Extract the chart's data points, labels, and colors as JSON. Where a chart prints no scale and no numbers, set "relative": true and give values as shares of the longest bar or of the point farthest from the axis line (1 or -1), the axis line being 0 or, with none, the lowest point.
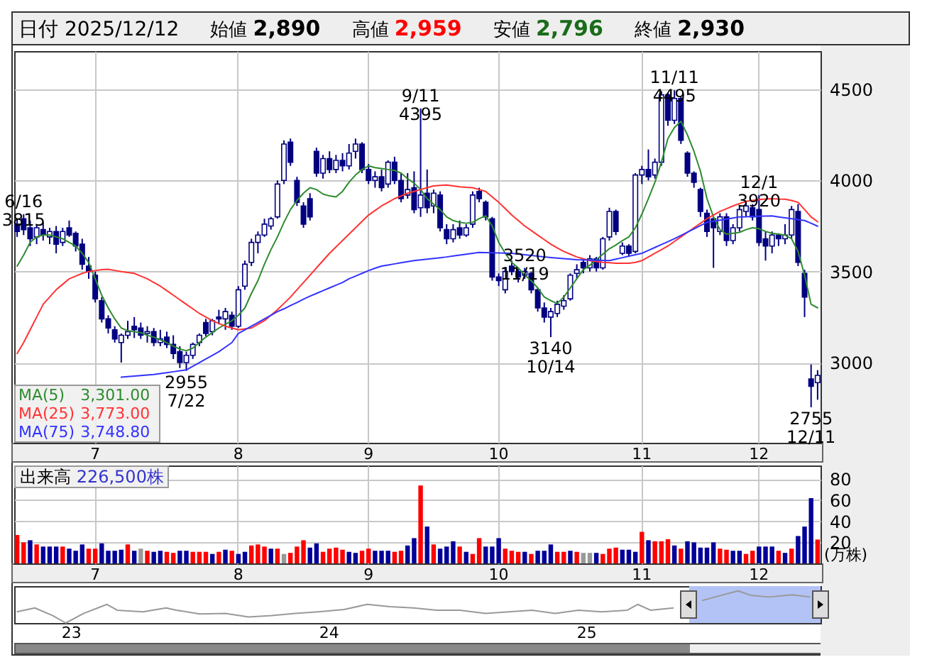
{
  "chart_data": [
    {
      "type": "candlestick",
      "title": "日付 2025/12/12",
      "categories": [
        null,
        null,
        null,
        null,
        null,
        null,
        null,
        null,
        null,
        null,
        null,
        null,
        "7",
        null,
        null,
        null,
        null,
        null,
        null,
        null,
        null,
        null,
        null,
        null,
        null,
        null,
        null,
        null,
        null,
        null,
        null,
        null,
        null,
        null,
        "8",
        null,
        null,
        null,
        null,
        null,
        null,
        null,
        null,
        null,
        null,
        null,
        null,
        null,
        null,
        null,
        null,
        null,
        null,
        null,
        "9",
        null,
        null,
        null,
        null,
        null,
        null,
        null,
        null,
        null,
        null,
        null,
        null,
        null,
        null,
        null,
        null,
        null,
        null,
        null,
        "10",
        null,
        null,
        null,
        null,
        null,
        null,
        null,
        null,
        null,
        null,
        null,
        null,
        null,
        null,
        null,
        null,
        null,
        null,
        null,
        null,
        null,
        "11",
        null,
        null,
        null,
        null,
        null,
        null,
        null,
        null,
        null,
        null,
        null,
        null,
        null,
        null,
        null,
        null,
        null,
        "12",
        null,
        null,
        null,
        null,
        null,
        null,
        null,
        null,
        null
      ],
      "series": [
        {
          "type": "candlestick",
          "color": "#000080",
          "ohlc": [
            [
              3760,
              3790,
              3690,
              3720
            ],
            [
              3790,
              3815,
              3700,
              3730
            ],
            [
              3740,
              3780,
              3640,
              3680
            ],
            [
              3690,
              3760,
              3650,
              3740
            ],
            [
              3730,
              3770,
              3670,
              3700
            ],
            [
              3690,
              3740,
              3650,
              3720
            ],
            [
              3720,
              3750,
              3600,
              3650
            ],
            [
              3660,
              3740,
              3640,
              3720
            ],
            [
              3740,
              3780,
              3690,
              3700
            ],
            [
              3710,
              3720,
              3610,
              3640
            ],
            [
              3650,
              3680,
              3510,
              3540
            ],
            [
              3530,
              3580,
              3460,
              3500
            ],
            [
              3480,
              3500,
              3330,
              3350
            ],
            [
              3340,
              3360,
              3220,
              3240
            ],
            [
              3240,
              3260,
              3160,
              3190
            ],
            [
              3180,
              3200,
              3110,
              3130
            ],
            [
              3110,
              3160,
              3000,
              3150
            ],
            [
              3150,
              3230,
              3130,
              3170
            ],
            [
              3200,
              3250,
              3135,
              3180
            ],
            [
              3190,
              3220,
              3130,
              3150
            ],
            [
              3160,
              3200,
              3110,
              3170
            ],
            [
              3170,
              3190,
              3090,
              3110
            ],
            [
              3110,
              3180,
              3090,
              3130
            ],
            [
              3140,
              3170,
              3080,
              3100
            ],
            [
              3100,
              3150,
              3020,
              3050
            ],
            [
              3060,
              3090,
              2970,
              3000
            ],
            [
              3000,
              3060,
              2955,
              3040
            ],
            [
              3040,
              3110,
              3020,
              3100
            ],
            [
              3110,
              3160,
              3090,
              3150
            ],
            [
              3220,
              3240,
              3145,
              3160
            ],
            [
              3170,
              3240,
              3150,
              3230
            ],
            [
              3250,
              3290,
              3210,
              3240
            ],
            [
              3240,
              3300,
              3180,
              3280
            ],
            [
              3260,
              3280,
              3180,
              3200
            ],
            [
              3200,
              3420,
              3190,
              3400
            ],
            [
              3420,
              3560,
              3400,
              3540
            ],
            [
              3550,
              3680,
              3530,
              3660
            ],
            [
              3660,
              3720,
              3600,
              3700
            ],
            [
              3700,
              3790,
              3690,
              3760
            ],
            [
              3750,
              3800,
              3730,
              3790
            ],
            [
              3800,
              4000,
              3790,
              3980
            ],
            [
              4000,
              4220,
              3980,
              4200
            ],
            [
              4210,
              4230,
              4080,
              4100
            ],
            [
              4000,
              4020,
              3860,
              3880
            ],
            [
              3860,
              3880,
              3740,
              3760
            ],
            [
              3900,
              3930,
              3780,
              3800
            ],
            [
              4160,
              4180,
              4020,
              4040
            ],
            [
              4040,
              4140,
              4010,
              4120
            ],
            [
              4120,
              4160,
              4040,
              4060
            ],
            [
              4060,
              4140,
              4040,
              4110
            ],
            [
              4110,
              4150,
              4050,
              4080
            ],
            [
              4080,
              4200,
              4060,
              4150
            ],
            [
              4160,
              4230,
              4120,
              4200
            ],
            [
              4200,
              4210,
              4040,
              4060
            ],
            [
              4060,
              4090,
              3980,
              4000
            ],
            [
              4000,
              4050,
              3960,
              4020
            ],
            [
              4020,
              4060,
              3940,
              3960
            ],
            [
              3980,
              4110,
              3960,
              4100
            ],
            [
              4100,
              4130,
              3980,
              4000
            ],
            [
              4000,
              4040,
              3880,
              3900
            ],
            [
              3920,
              4040,
              3900,
              3950
            ],
            [
              3960,
              4050,
              3820,
              3840
            ],
            [
              3850,
              4395,
              3800,
              3920
            ],
            [
              3930,
              4060,
              3820,
              3850
            ],
            [
              3860,
              3950,
              3820,
              3930
            ],
            [
              3920,
              3940,
              3720,
              3740
            ],
            [
              3730,
              3760,
              3650,
              3680
            ],
            [
              3680,
              3760,
              3660,
              3730
            ],
            [
              3740,
              3780,
              3680,
              3700
            ],
            [
              3700,
              3760,
              3690,
              3740
            ],
            [
              3760,
              3940,
              3740,
              3920
            ],
            [
              3940,
              3960,
              3880,
              3900
            ],
            [
              3880,
              3890,
              3780,
              3800
            ],
            [
              3790,
              3800,
              3450,
              3470
            ],
            [
              3470,
              3490,
              3420,
              3450
            ],
            [
              3400,
              3525,
              3380,
              3500
            ],
            [
              3530,
              3560,
              3480,
              3500
            ],
            [
              3500,
              3515,
              3440,
              3470
            ],
            [
              3480,
              3520,
              3460,
              3500
            ],
            [
              3490,
              3500,
              3380,
              3400
            ],
            [
              3400,
              3410,
              3280,
              3300
            ],
            [
              3300,
              3330,
              3220,
              3250
            ],
            [
              3250,
              3300,
              3140,
              3280
            ],
            [
              3270,
              3340,
              3250,
              3320
            ],
            [
              3310,
              3370,
              3290,
              3340
            ],
            [
              3350,
              3490,
              3340,
              3480
            ],
            [
              3490,
              3540,
              3460,
              3510
            ],
            [
              3550,
              3570,
              3490,
              3520
            ],
            [
              3520,
              3590,
              3500,
              3570
            ],
            [
              3570,
              3580,
              3500,
              3520
            ],
            [
              3520,
              3690,
              3510,
              3680
            ],
            [
              3690,
              3850,
              3670,
              3830
            ],
            [
              3830,
              3840,
              3700,
              3720
            ],
            [
              3600,
              3660,
              3590,
              3640
            ],
            [
              3640,
              3650,
              3580,
              3600
            ],
            [
              3610,
              4040,
              3600,
              4030
            ],
            [
              4030,
              4080,
              3980,
              4060
            ],
            [
              4060,
              4170,
              4000,
              4020
            ],
            [
              4030,
              4120,
              4010,
              4100
            ],
            [
              4100,
              4490,
              4080,
              4470
            ],
            [
              4470,
              4480,
              4300,
              4330
            ],
            [
              4330,
              4495,
              4310,
              4450
            ],
            [
              4450,
              4460,
              4200,
              4220
            ],
            [
              4150,
              4160,
              4020,
              4040
            ],
            [
              4040,
              4050,
              3960,
              3990
            ],
            [
              3950,
              3960,
              3800,
              3830
            ],
            [
              3820,
              3840,
              3690,
              3720
            ],
            [
              3790,
              3800,
              3520,
              3740
            ],
            [
              3720,
              3820,
              3700,
              3800
            ],
            [
              3800,
              3820,
              3640,
              3670
            ],
            [
              3670,
              3760,
              3650,
              3740
            ],
            [
              3740,
              3860,
              3720,
              3840
            ],
            [
              3830,
              3880,
              3800,
              3860
            ],
            [
              3850,
              3870,
              3780,
              3800
            ],
            [
              3840,
              3920,
              3640,
              3660
            ],
            [
              3680,
              3720,
              3560,
              3640
            ],
            [
              3640,
              3720,
              3600,
              3700
            ],
            [
              3700,
              3710,
              3640,
              3680
            ],
            [
              3680,
              3760,
              3650,
              3700
            ],
            [
              3700,
              3860,
              3680,
              3840
            ],
            [
              3830,
              3870,
              3530,
              3550
            ],
            [
              3490,
              3510,
              3250,
              3360
            ],
            [
              2910,
              2990,
              2755,
              2870
            ],
            [
              2890,
              2959,
              2796,
              2930
            ]
          ]
        },
        {
          "type": "line",
          "name": "MA(5)",
          "color": "#2e8b2e",
          "values": [
            3530,
            3590,
            3660,
            3690,
            3700,
            3700,
            3690,
            3680,
            3660,
            3640,
            3600,
            3550,
            3460,
            3370,
            3300,
            3240,
            3190,
            3175,
            3170,
            3165,
            3150,
            3140,
            3125,
            3110,
            3090,
            3075,
            3065,
            3080,
            3110,
            3140,
            3165,
            3190,
            3210,
            3230,
            3260,
            3300,
            3380,
            3450,
            3540,
            3620,
            3690,
            3770,
            3840,
            3890,
            3930,
            3960,
            3950,
            3925,
            3915,
            3910,
            3940,
            3990,
            4030,
            4060,
            4080,
            4070,
            4065,
            4060,
            4055,
            4040,
            4010,
            3985,
            3950,
            3900,
            3870,
            3840,
            3800,
            3780,
            3770,
            3765,
            3770,
            3790,
            3806,
            3750,
            3660,
            3600,
            3550,
            3520,
            3480,
            3450,
            3410,
            3360,
            3340,
            3325,
            3360,
            3410,
            3460,
            3510,
            3535,
            3565,
            3595,
            3625,
            3645,
            3670,
            3690,
            3740,
            3815,
            3900,
            3990,
            4100,
            4230,
            4290,
            4325,
            4250,
            4160,
            4050,
            3900,
            3800,
            3730,
            3705,
            3710,
            3715,
            3730,
            3740,
            3735,
            3720,
            3710,
            3705,
            3700,
            3680,
            3610,
            3480,
            3320,
            3301
          ]
        },
        {
          "type": "line",
          "name": "MA(25)",
          "color": "#ff3333",
          "values": [
            3050,
            3110,
            3180,
            3250,
            3320,
            3360,
            3400,
            3430,
            3460,
            3475,
            3490,
            3500,
            3505,
            3510,
            3512,
            3506,
            3500,
            3495,
            3490,
            3475,
            3460,
            3440,
            3420,
            3395,
            3370,
            3345,
            3320,
            3295,
            3270,
            3250,
            3230,
            3215,
            3200,
            3190,
            3180,
            3185,
            3190,
            3210,
            3230,
            3260,
            3290,
            3325,
            3360,
            3400,
            3440,
            3480,
            3520,
            3560,
            3600,
            3635,
            3670,
            3705,
            3740,
            3775,
            3810,
            3835,
            3860,
            3880,
            3900,
            3915,
            3930,
            3940,
            3950,
            3960,
            3970,
            3973,
            3975,
            3970,
            3965,
            3962,
            3960,
            3950,
            3940,
            3910,
            3880,
            3845,
            3810,
            3780,
            3750,
            3725,
            3700,
            3675,
            3650,
            3630,
            3610,
            3595,
            3580,
            3570,
            3560,
            3555,
            3550,
            3548,
            3545,
            3545,
            3545,
            3550,
            3560,
            3580,
            3600,
            3620,
            3640,
            3665,
            3690,
            3715,
            3740,
            3765,
            3790,
            3810,
            3830,
            3845,
            3860,
            3873,
            3885,
            3890,
            3895,
            3898,
            3900,
            3898,
            3897,
            3890,
            3880,
            3840,
            3800,
            3773
          ]
        },
        {
          "type": "line",
          "name": "MA(75)",
          "color": "#3333ff",
          "values": [
            null,
            null,
            null,
            null,
            null,
            null,
            null,
            null,
            null,
            null,
            null,
            null,
            null,
            null,
            null,
            null,
            2920,
            2923,
            2926,
            2929,
            2932,
            2935,
            2940,
            2945,
            2950,
            2955,
            2960,
            2980,
            3000,
            3020,
            3040,
            3060,
            3085,
            3110,
            3160,
            3180,
            3200,
            3220,
            3240,
            3260,
            3280,
            3295,
            3313,
            3330,
            3348,
            3365,
            3380,
            3395,
            3410,
            3425,
            3440,
            3460,
            3475,
            3490,
            3505,
            3518,
            3530,
            3536,
            3542,
            3548,
            3554,
            3560,
            3564,
            3568,
            3572,
            3576,
            3580,
            3585,
            3590,
            3595,
            3600,
            3605,
            3604,
            3603,
            3602,
            3601,
            3600,
            3596,
            3592,
            3588,
            3584,
            3580,
            3577,
            3574,
            3571,
            3568,
            3565,
            3564,
            3563,
            3562,
            3561,
            3560,
            3568,
            3576,
            3584,
            3592,
            3600,
            3616,
            3632,
            3648,
            3664,
            3680,
            3698,
            3716,
            3734,
            3752,
            3770,
            3776,
            3782,
            3788,
            3794,
            3800,
            3801,
            3802,
            3803,
            3804,
            3805,
            3800,
            3795,
            3790,
            3785,
            3780,
            3765,
            3748.8
          ]
        }
      ],
      "ylim": [
        2560,
        4710
      ],
      "yticks": [
        3000,
        3500,
        4000,
        4500
      ],
      "grid": true,
      "legend": "bottom left",
      "annotations": [
        "始値 2,890",
        "高値 2,959",
        "安値 2,796",
        "終値 2,930",
        "3,301.00",
        "3,773.00",
        "3,748.80",
        {
          "text": "6/16\n3815",
          "y": 3815
        },
        {
          "text": "2955\n7/22",
          "y": 2955
        },
        {
          "text": "9/11\n4395",
          "y": 4395
        },
        {
          "text": "3140\n10/14",
          "y": 3140
        },
        {
          "text": "11/11\n4495",
          "y": 4495
        },
        {
          "text": "3520\n11/19",
          "y": 3520
        },
        {
          "text": "12/1\n3920",
          "y": 3920
        },
        {
          "text": "2755\n12/11",
          "y": 2755
        }
      ]
    },
    {
      "type": "bar",
      "title": "出来高 226,500株",
      "ylabel": "(万株)",
      "categories": [
        null,
        null,
        null,
        null,
        null,
        null,
        null,
        null,
        null,
        null,
        null,
        null,
        "7",
        null,
        null,
        null,
        null,
        null,
        null,
        null,
        null,
        null,
        null,
        null,
        null,
        null,
        null,
        null,
        null,
        null,
        null,
        null,
        null,
        null,
        "8",
        null,
        null,
        null,
        null,
        null,
        null,
        null,
        null,
        null,
        null,
        null,
        null,
        null,
        null,
        null,
        null,
        null,
        null,
        null,
        "9",
        null,
        null,
        null,
        null,
        null,
        null,
        null,
        null,
        null,
        null,
        null,
        null,
        null,
        null,
        null,
        null,
        null,
        null,
        null,
        "10",
        null,
        null,
        null,
        null,
        null,
        null,
        null,
        null,
        null,
        null,
        null,
        null,
        null,
        null,
        null,
        null,
        null,
        null,
        null,
        null,
        null,
        "11",
        null,
        null,
        null,
        null,
        null,
        null,
        null,
        null,
        null,
        null,
        null,
        null,
        null,
        null,
        null,
        null,
        null,
        "12",
        null,
        null,
        null,
        null,
        null,
        null,
        null,
        null,
        null
      ],
      "values": [
        27,
        20,
        22,
        18,
        16,
        16,
        16,
        16,
        14,
        12,
        18,
        14,
        14,
        19,
        12,
        12,
        13,
        18,
        12,
        14,
        12,
        11,
        12,
        11,
        10,
        12,
        12,
        11,
        11,
        11,
        9,
        11,
        13,
        12,
        9,
        11,
        17,
        18,
        16,
        14,
        14,
        9,
        10,
        16,
        22,
        15,
        19,
        11,
        14,
        15,
        13,
        11,
        10,
        12,
        14,
        12,
        12,
        12,
        11,
        12,
        17,
        24,
        74,
        35,
        18,
        14,
        16,
        21,
        16,
        11,
        9,
        24,
        16,
        16,
        24,
        14,
        12,
        11,
        11,
        9,
        12,
        12,
        18,
        11,
        11,
        12,
        11,
        10,
        10,
        10,
        9,
        14,
        15,
        13,
        13,
        11,
        30,
        22,
        21,
        21,
        23,
        17,
        14,
        21,
        20,
        15,
        15,
        20,
        14,
        13,
        12,
        12,
        9,
        12,
        16,
        16,
        16,
        12,
        10,
        14,
        26,
        35,
        62,
        22.65
      ],
      "colors": [
        "#ff0000",
        "#ff0000",
        "#000099",
        "#ff0000",
        "#000099",
        "#000099",
        "#000099",
        "#ff0000",
        "#000099",
        "#000099",
        "#000099",
        "#ff0000",
        "#ff0000",
        "#000099",
        "#000099",
        "#000099",
        "#000099",
        "#ff0000",
        "#000099",
        "#999999",
        "#ff0000",
        "#000099",
        "#000099",
        "#ff0000",
        "#ff0000",
        "#000099",
        "#000099",
        "#ff0000",
        "#ff0000",
        "#ff0000",
        "#000099",
        "#ff0000",
        "#000099",
        "#ff0000",
        "#000099",
        "#000099",
        "#ff0000",
        "#ff0000",
        "#ff0000",
        "#000099",
        "#ff0000",
        "#999999",
        "#ff0000",
        "#ff0000",
        "#ff0000",
        "#000099",
        "#000099",
        "#ff0000",
        "#ff0000",
        "#ff0000",
        "#ff0000",
        "#000099",
        "#000099",
        "#ff0000",
        "#ff0000",
        "#000099",
        "#000099",
        "#000099",
        "#ff0000",
        "#ff0000",
        "#000099",
        "#000099",
        "#ff0000",
        "#000099",
        "#ff0000",
        "#000099",
        "#000099",
        "#000099",
        "#ff0000",
        "#000099",
        "#ff0000",
        "#ff0000",
        "#000099",
        "#000099",
        "#000099",
        "#ff0000",
        "#ff0000",
        "#ff0000",
        "#000099",
        "#ff0000",
        "#000099",
        "#000099",
        "#000099",
        "#ff0000",
        "#ff0000",
        "#000099",
        "#ff0000",
        "#999999",
        "#999999",
        "#000099",
        "#ff0000",
        "#ff0000",
        "#ff0000",
        "#000099",
        "#000099",
        "#000099",
        "#ff0000",
        "#000099",
        "#ff0000",
        "#ff0000",
        "#ff0000",
        "#000099",
        "#ff0000",
        "#000099",
        "#000099",
        "#000099",
        "#000099",
        "#000099",
        "#ff0000",
        "#ff0000",
        "#000099",
        "#000099",
        "#ff0000",
        "#ff0000",
        "#000099",
        "#000099",
        "#000099",
        "#ff0000",
        "#000099",
        "#ff0000",
        "#000099",
        "#000099",
        "#000099",
        "#ff0000"
      ],
      "ylim": [
        0,
        93
      ],
      "yticks": [
        20,
        40,
        60,
        80
      ],
      "grid": true
    },
    {
      "type": "line",
      "relative": true,
      "x": [
        2022.79,
        2022.86,
        2022.93,
        2022.98,
        2023.05,
        2023.14,
        2023.18,
        2023.28,
        2023.37,
        2023.41,
        2023.5,
        2023.6,
        2023.69,
        2023.78,
        2023.87,
        2023.96,
        2024.06,
        2024.15,
        2024.24,
        2024.33,
        2024.42,
        2024.51,
        2024.61,
        2024.7,
        2024.79,
        2024.88,
        2024.97,
        2025.06,
        2025.16,
        2025.2,
        2025.25,
        2025.34,
        2025.4,
        2025.45,
        2025.5,
        2025.59,
        2025.64,
        2025.71,
        2025.8,
        2025.87
      ],
      "series": [
        {
          "color": "#999999",
          "values": [
            0.35,
            0.47,
            0.23,
            0,
            0.3,
            0.58,
            0.4,
            0.35,
            0.47,
            0.4,
            0.28,
            0.3,
            0.19,
            0.23,
            0.3,
            0.35,
            0.42,
            0.58,
            0.51,
            0.47,
            0.4,
            0.4,
            0.3,
            0.35,
            0.4,
            0.3,
            0.4,
            0.35,
            0.4,
            0.58,
            0.4,
            0.47,
            null,
            0.7,
            0.81,
            1,
            0.86,
            0.81,
            0.88,
            0.81
          ]
        }
      ],
      "xlim": [
        2022.78,
        2025.91
      ],
      "xticks": [
        {
          "value": 2023,
          "label": "23"
        },
        {
          "value": 2024,
          "label": "24"
        },
        {
          "value": 2025,
          "label": "25"
        }
      ],
      "bands": [
        {
          "axis": "x",
          "from": 2025.4,
          "to": 2025.91,
          "color": "#b3c3f5"
        }
      ]
    }
  ]
}
